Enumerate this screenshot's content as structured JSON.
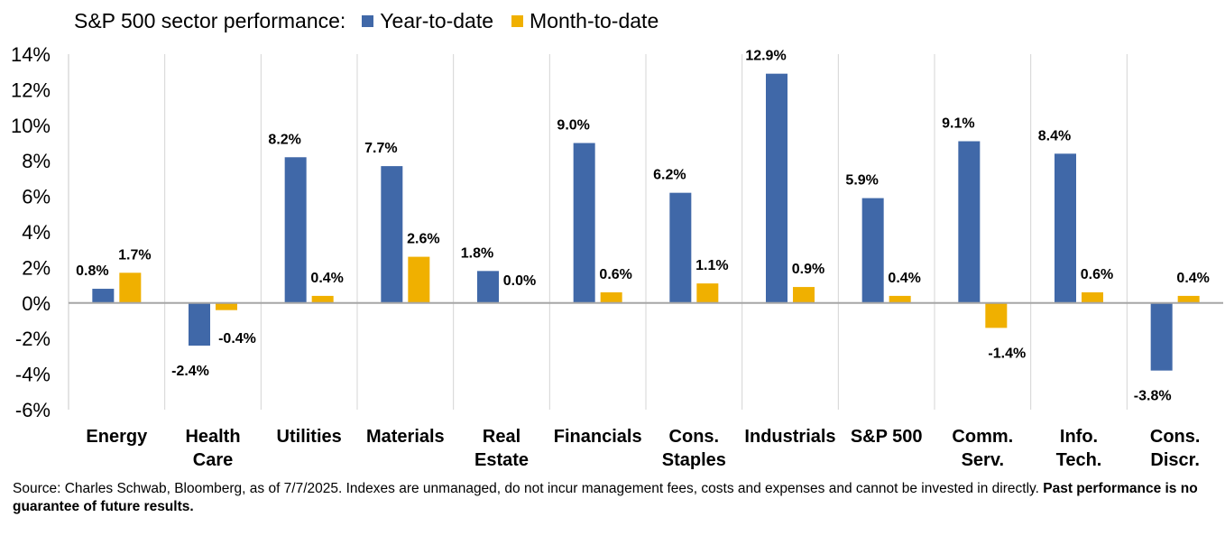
{
  "chart_data": {
    "type": "bar",
    "title": "S&P 500 sector performance:",
    "categories": [
      [
        "Energy"
      ],
      [
        "Health",
        "Care"
      ],
      [
        "Utilities"
      ],
      [
        "Materials"
      ],
      [
        "Real",
        "Estate"
      ],
      [
        "Financials"
      ],
      [
        "Cons.",
        "Staples"
      ],
      [
        "Industrials"
      ],
      [
        "S&P 500"
      ],
      [
        "Comm.",
        "Serv."
      ],
      [
        "Info.",
        "Tech."
      ],
      [
        "Cons.",
        "Discr."
      ]
    ],
    "series": [
      {
        "name": "Year-to-date",
        "color": "#4068A8",
        "values": [
          0.8,
          -2.4,
          8.2,
          7.7,
          1.8,
          9.0,
          6.2,
          12.9,
          5.9,
          9.1,
          8.4,
          -3.8
        ],
        "labels": [
          "0.8%",
          "-2.4%",
          "8.2%",
          "7.7%",
          "1.8%",
          "9.0%",
          "6.2%",
          "12.9%",
          "5.9%",
          "9.1%",
          "8.4%",
          "-3.8%"
        ]
      },
      {
        "name": "Month-to-date",
        "color": "#F0B000",
        "values": [
          1.7,
          -0.4,
          0.4,
          2.6,
          0.0,
          0.6,
          1.1,
          0.9,
          0.4,
          -1.4,
          0.6,
          0.4
        ],
        "labels": [
          "1.7%",
          "-0.4%",
          "0.4%",
          "2.6%",
          "0.0%",
          "0.6%",
          "1.1%",
          "0.9%",
          "0.4%",
          "-1.4%",
          "0.6%",
          "0.4%"
        ]
      }
    ],
    "ylim": [
      -6,
      14
    ],
    "yticks": [
      "14%",
      "12%",
      "10%",
      "8%",
      "6%",
      "4%",
      "2%",
      "0%",
      "-2%",
      "-4%",
      "-6%"
    ],
    "ytick_values": [
      14,
      12,
      10,
      8,
      6,
      4,
      2,
      0,
      -2,
      -4,
      -6
    ],
    "grid": "vertical separators between categories",
    "legend": "top"
  },
  "footer": {
    "source": "Source: Charles Schwab, Bloomberg, as of 7/7/2025. Indexes are unmanaged, do not incur management fees, costs and expenses and cannot be invested in directly. ",
    "disclaimer": "Past performance is no guarantee of future results."
  }
}
